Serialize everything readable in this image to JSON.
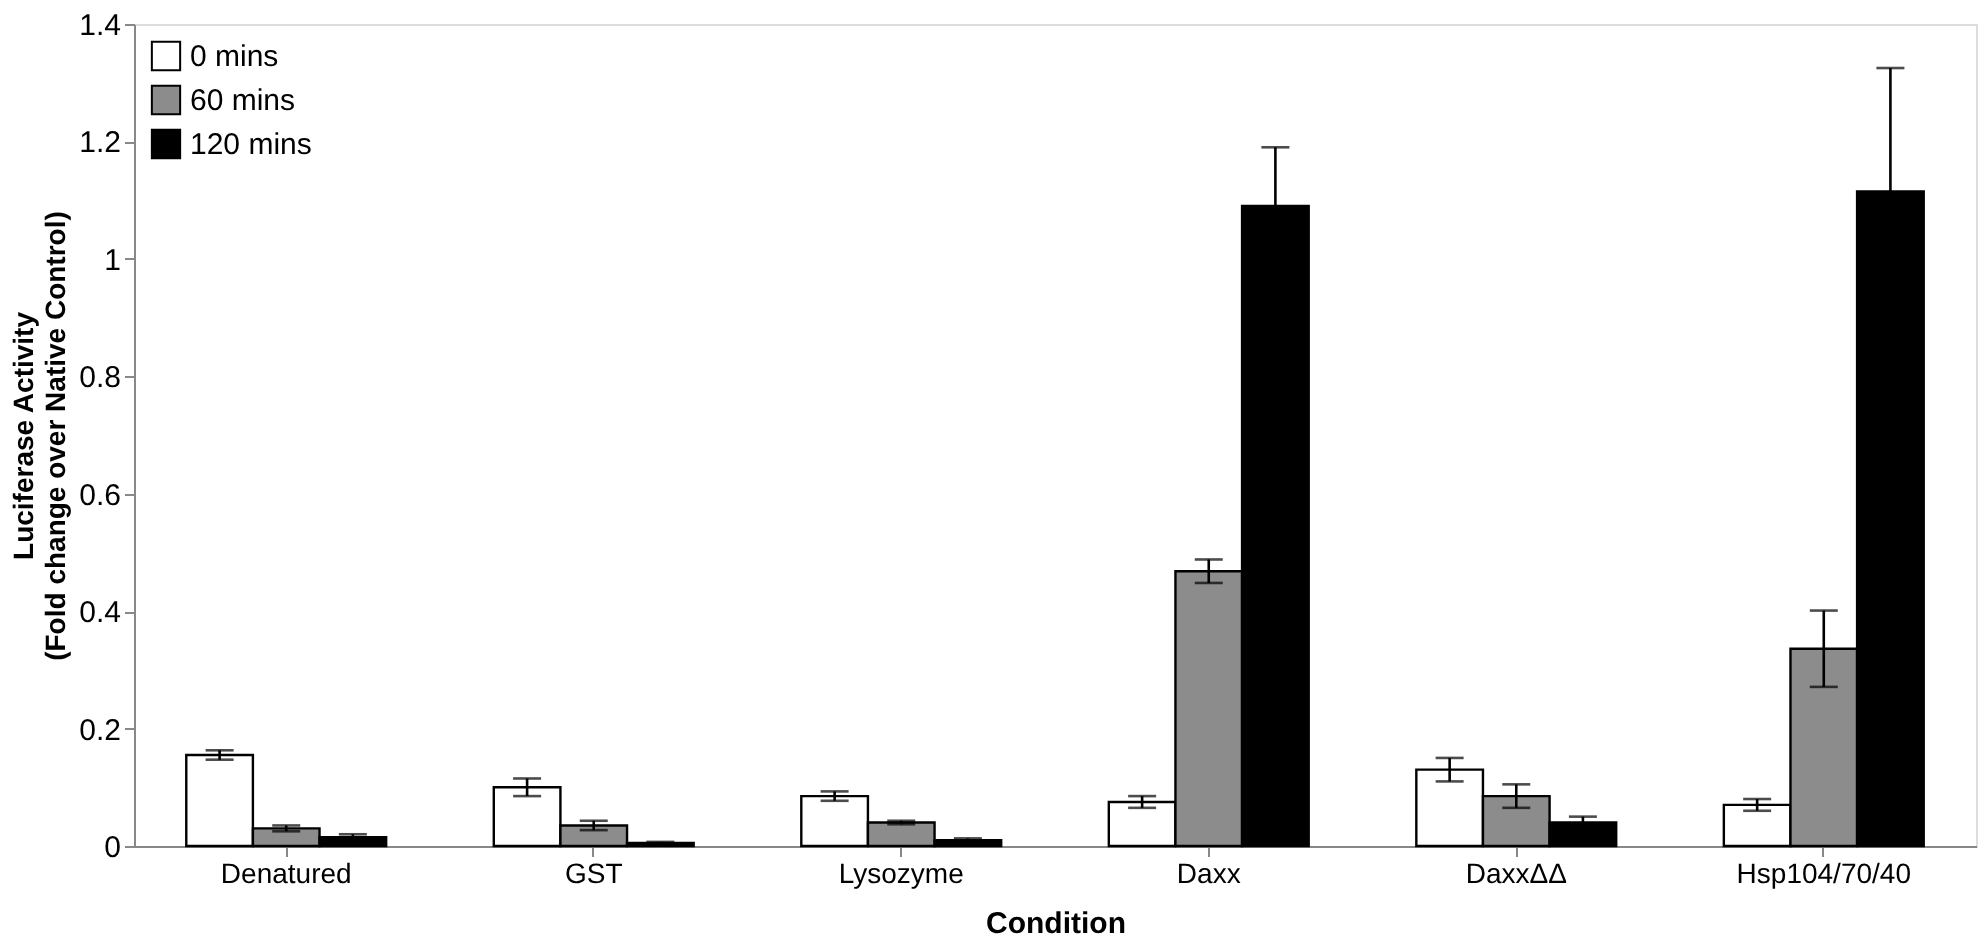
{
  "chart_data": {
    "type": "bar",
    "xlabel": "Condition",
    "ylabel": "Luciferase Activity\n(Fold change over Native Control)",
    "categories": [
      "Denatured",
      "GST",
      "Lysozyme",
      "Daxx",
      "DaxxΔΔ",
      "Hsp104/70/40"
    ],
    "series": [
      {
        "name": "0 mins",
        "color": "#ffffff",
        "values": [
          0.155,
          0.1,
          0.085,
          0.075,
          0.13,
          0.07
        ],
        "errors": [
          0.008,
          0.015,
          0.008,
          0.01,
          0.02,
          0.01
        ]
      },
      {
        "name": "60 mins",
        "color": "#8c8c8c",
        "values": [
          0.03,
          0.035,
          0.04,
          0.468,
          0.085,
          0.336
        ],
        "errors": [
          0.005,
          0.008,
          0.003,
          0.02,
          0.02,
          0.065
        ]
      },
      {
        "name": "120 mins",
        "color": "#000000",
        "values": [
          0.015,
          0.005,
          0.01,
          1.09,
          0.04,
          1.115
        ],
        "errors": [
          0.005,
          0.002,
          0.003,
          0.1,
          0.01,
          0.21
        ]
      }
    ],
    "ylim": [
      0,
      1.4
    ],
    "yticks": [
      0,
      0.2,
      0.4,
      0.6,
      0.8,
      1,
      1.2,
      1.4
    ],
    "grid": false,
    "legend": "top left"
  }
}
